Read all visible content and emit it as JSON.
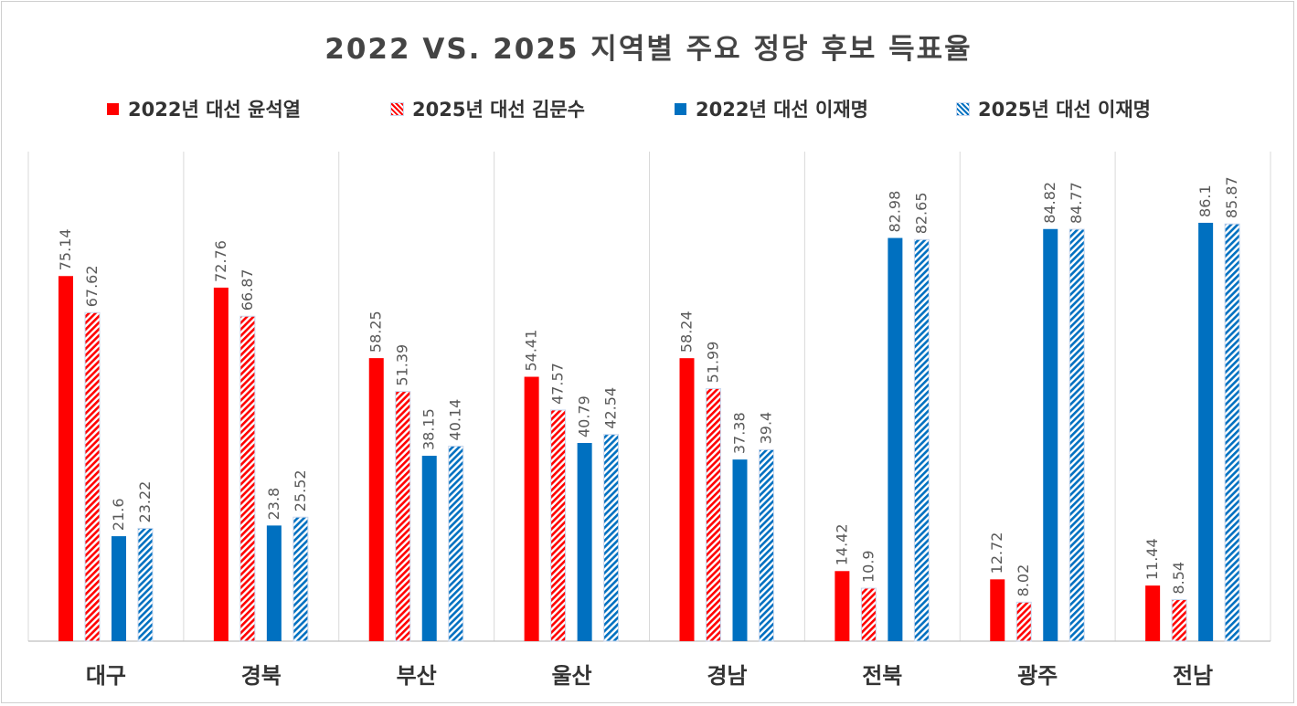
{
  "chart_data": {
    "type": "bar",
    "title": "2022 VS. 2025 지역별 주요 정당 후보 득표율",
    "categories": [
      "대구",
      "경북",
      "부산",
      "울산",
      "경남",
      "전북",
      "광주",
      "전남"
    ],
    "series": [
      {
        "name": "2022년 대선 윤석열",
        "color": "#ff0000",
        "pattern": "solid",
        "values": [
          75.14,
          72.76,
          58.25,
          54.41,
          58.24,
          14.42,
          12.72,
          11.44
        ]
      },
      {
        "name": "2025년 대선 김문수",
        "color": "#ff0000",
        "pattern": "hatched",
        "values": [
          67.62,
          66.87,
          51.39,
          47.57,
          51.99,
          10.9,
          8.02,
          8.54
        ]
      },
      {
        "name": "2022년 대선 이재명",
        "color": "#0070c0",
        "pattern": "solid",
        "values": [
          21.6,
          23.8,
          38.15,
          40.79,
          37.38,
          82.98,
          84.82,
          86.1
        ]
      },
      {
        "name": "2025년 대선 이재명",
        "color": "#0070c0",
        "pattern": "hatched",
        "values": [
          23.22,
          25.52,
          40.14,
          42.54,
          39.4,
          82.65,
          84.77,
          85.87
        ]
      }
    ],
    "ylim": [
      0,
      100
    ],
    "xlabel": "",
    "ylabel": "",
    "grid": false,
    "legend_position": "top",
    "data_labels": true
  }
}
